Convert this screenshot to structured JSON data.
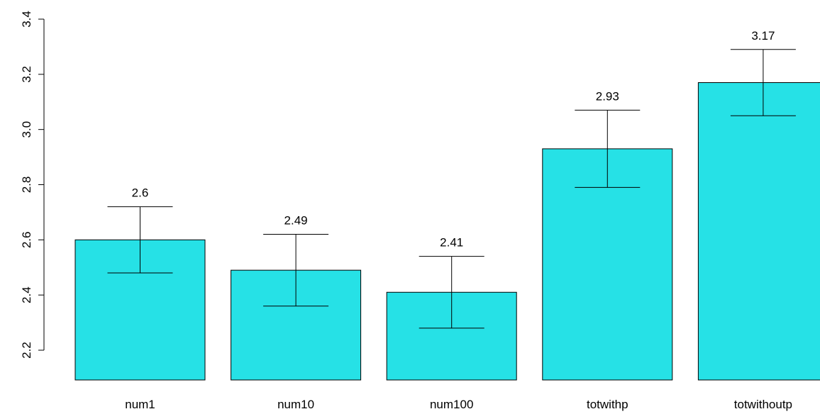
{
  "chart_data": {
    "type": "bar",
    "categories": [
      "num1",
      "num10",
      "num100",
      "totwithp",
      "totwithoutp"
    ],
    "values": [
      2.6,
      2.49,
      2.41,
      2.93,
      3.17
    ],
    "value_labels": [
      "2.6",
      "2.49",
      "2.41",
      "2.93",
      "3.17"
    ],
    "error_low": [
      2.48,
      2.36,
      2.28,
      2.79,
      3.05
    ],
    "error_high": [
      2.72,
      2.62,
      2.54,
      3.07,
      3.29
    ],
    "ylim": [
      2.2,
      3.4
    ],
    "yticks": [
      2.2,
      2.4,
      2.6,
      2.8,
      3.0,
      3.2,
      3.4
    ],
    "ytick_labels": [
      "2.2",
      "2.4",
      "2.6",
      "2.8",
      "3.0",
      "3.2",
      "3.4"
    ],
    "title": "",
    "xlabel": "",
    "ylabel": "",
    "grid": false,
    "bar_color": "#26E1E6",
    "legend": "none"
  }
}
